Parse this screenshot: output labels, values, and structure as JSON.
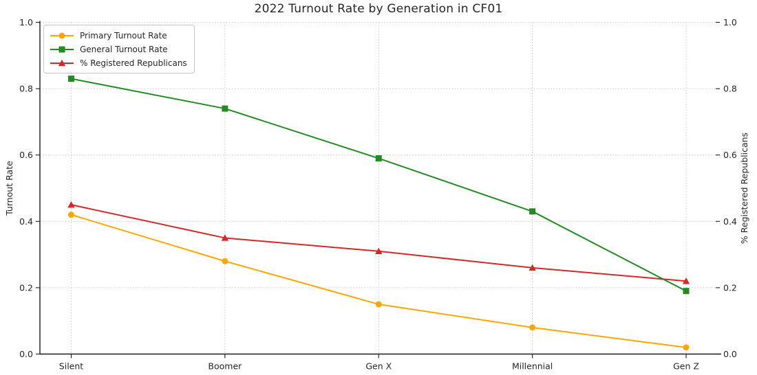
{
  "chart_data": {
    "type": "line",
    "title": "2022 Turnout Rate by Generation in CF01",
    "categories": [
      "Silent",
      "Boomer",
      "Gen X",
      "Millennial",
      "Gen Z"
    ],
    "series": [
      {
        "name": "Primary Turnout Rate",
        "color": "#FFA500",
        "marker": "circle",
        "axis": "left",
        "values": [
          0.42,
          0.28,
          0.15,
          0.08,
          0.02
        ]
      },
      {
        "name": "General Turnout Rate",
        "color": "#228B22",
        "marker": "square",
        "axis": "left",
        "values": [
          0.83,
          0.74,
          0.59,
          0.43,
          0.19
        ]
      },
      {
        "name": "% Registered Republicans",
        "color": "#D62728",
        "marker": "triangle-up",
        "axis": "right",
        "values": [
          0.45,
          0.35,
          0.31,
          0.26,
          0.22
        ]
      }
    ],
    "ylabel_left": "Turnout Rate",
    "ylabel_right": "% Registered Republicans",
    "y_ticks": [
      "0.0",
      "0.2",
      "0.4",
      "0.6",
      "0.8",
      "1.0"
    ],
    "ylim": [
      0.0,
      1.0
    ],
    "grid": true,
    "legend_position": "upper left"
  }
}
